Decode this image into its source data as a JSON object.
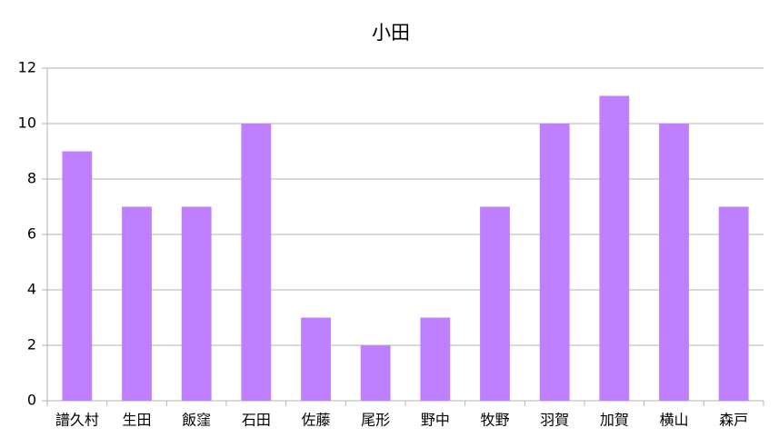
{
  "chart_data": {
    "type": "bar",
    "title": "小田",
    "categories": [
      "譜久村",
      "生田",
      "飯窪",
      "石田",
      "佐藤",
      "尾形",
      "野中",
      "牧野",
      "羽賀",
      "加賀",
      "横山",
      "森戸"
    ],
    "values": [
      9,
      7,
      7,
      10,
      3,
      2,
      3,
      7,
      10,
      11,
      10,
      7
    ],
    "color": "#bf80ff",
    "ylim": [
      0,
      12
    ],
    "yticks": [
      0,
      2,
      4,
      6,
      8,
      10,
      12
    ],
    "grid": true
  }
}
